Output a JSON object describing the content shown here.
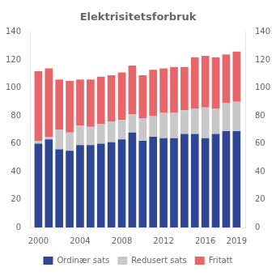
{
  "chart_data": {
    "type": "bar",
    "title": "Elektrisitetsforbruk",
    "stacked": true,
    "x": [
      2000,
      2001,
      2002,
      2003,
      2004,
      2005,
      2006,
      2007,
      2008,
      2009,
      2010,
      2011,
      2012,
      2013,
      2014,
      2015,
      2016,
      2017,
      2018,
      2019
    ],
    "series": [
      {
        "name": "Ordinær sats",
        "color": "#2E4693",
        "values": [
          60,
          63,
          56,
          55,
          59,
          59,
          60,
          61,
          63,
          68,
          62,
          65,
          64,
          64,
          67,
          67,
          64,
          67,
          69,
          69
        ]
      },
      {
        "name": "Redusert sats",
        "color": "#C8C8C8",
        "values": [
          2,
          2,
          14,
          13,
          14,
          13,
          14,
          15,
          14,
          13,
          16,
          15,
          18,
          18,
          17,
          18,
          22,
          18,
          20,
          21
        ]
      },
      {
        "name": "Fritatt",
        "color": "#E8666A",
        "values": [
          50,
          49,
          36,
          37,
          33,
          34,
          34,
          33,
          34,
          35,
          31,
          33,
          32,
          33,
          31,
          37,
          37,
          37,
          35,
          36
        ]
      }
    ],
    "xlim": [
      1999.2,
      2019.9
    ],
    "xticks": [
      2000,
      2004,
      2008,
      2012,
      2016,
      2019
    ],
    "ylim": [
      0,
      140
    ],
    "yticks": [
      0,
      20,
      40,
      60,
      80,
      100,
      120,
      140
    ],
    "y2lim": [
      0,
      140
    ],
    "y2ticks": [
      0,
      20,
      40,
      60,
      80,
      100,
      120,
      140
    ],
    "grid": false,
    "legend": "bottom"
  }
}
